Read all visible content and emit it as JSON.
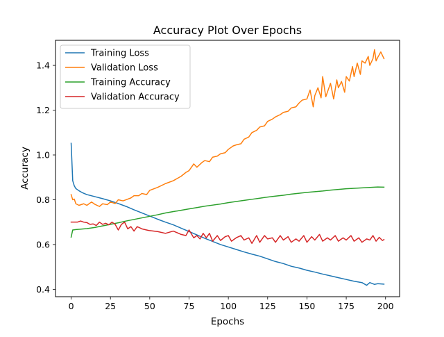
{
  "chart_data": {
    "type": "line",
    "title": "Accuracy Plot Over Epochs",
    "xlabel": "Epochs",
    "ylabel": "Accuracy",
    "xlim": [
      -9.95,
      208.95
    ],
    "ylim": [
      0.367,
      1.512
    ],
    "xticks": [
      0,
      25,
      50,
      75,
      100,
      125,
      150,
      175,
      200
    ],
    "yticks": [
      0.4,
      0.6,
      0.8,
      1.0,
      1.2,
      1.4
    ],
    "ytick_labels": [
      "0.4",
      "0.6",
      "0.8",
      "1.0",
      "1.2",
      "1.4"
    ],
    "grid": false,
    "legend_position": "top-left",
    "series": [
      {
        "name": "Training Loss",
        "color": "#1f77b4",
        "x": [
          0,
          1,
          2,
          3,
          4,
          5,
          7,
          10,
          15,
          20,
          25,
          30,
          35,
          40,
          45,
          50,
          55,
          60,
          65,
          70,
          75,
          80,
          85,
          90,
          95,
          100,
          105,
          110,
          115,
          120,
          125,
          130,
          135,
          140,
          145,
          150,
          155,
          160,
          165,
          170,
          175,
          180,
          185,
          188,
          190,
          193,
          195,
          199
        ],
        "y": [
          1.052,
          0.885,
          0.862,
          0.85,
          0.845,
          0.84,
          0.832,
          0.823,
          0.814,
          0.805,
          0.795,
          0.783,
          0.77,
          0.755,
          0.741,
          0.727,
          0.713,
          0.7,
          0.688,
          0.673,
          0.658,
          0.643,
          0.628,
          0.614,
          0.6,
          0.589,
          0.578,
          0.567,
          0.557,
          0.548,
          0.536,
          0.524,
          0.515,
          0.503,
          0.495,
          0.485,
          0.477,
          0.468,
          0.46,
          0.452,
          0.444,
          0.436,
          0.43,
          0.418,
          0.43,
          0.422,
          0.425,
          0.423
        ]
      },
      {
        "name": "Validation Loss",
        "color": "#ff7f0e",
        "x": [
          0,
          1,
          2,
          3,
          5,
          8,
          10,
          13,
          15,
          18,
          20,
          23,
          25,
          28,
          30,
          33,
          35,
          38,
          40,
          43,
          45,
          48,
          50,
          55,
          60,
          65,
          70,
          73,
          75,
          78,
          80,
          83,
          85,
          88,
          90,
          93,
          95,
          98,
          100,
          103,
          105,
          108,
          110,
          113,
          115,
          118,
          120,
          123,
          125,
          128,
          130,
          133,
          135,
          138,
          140,
          143,
          145,
          147,
          150,
          152,
          154,
          155,
          157,
          159,
          160,
          162,
          164,
          165,
          167,
          169,
          170,
          172,
          174,
          175,
          177,
          179,
          180,
          182,
          184,
          185,
          187,
          189,
          190,
          192,
          193,
          194,
          195,
          197,
          198,
          199
        ],
        "y": [
          0.823,
          0.8,
          0.803,
          0.782,
          0.775,
          0.782,
          0.775,
          0.79,
          0.78,
          0.77,
          0.782,
          0.778,
          0.79,
          0.783,
          0.8,
          0.795,
          0.8,
          0.808,
          0.818,
          0.818,
          0.828,
          0.823,
          0.842,
          0.855,
          0.872,
          0.885,
          0.905,
          0.922,
          0.93,
          0.96,
          0.945,
          0.965,
          0.975,
          0.97,
          0.99,
          0.995,
          1.005,
          1.01,
          1.025,
          1.04,
          1.045,
          1.05,
          1.07,
          1.08,
          1.1,
          1.11,
          1.125,
          1.13,
          1.15,
          1.16,
          1.17,
          1.18,
          1.19,
          1.195,
          1.21,
          1.215,
          1.232,
          1.245,
          1.25,
          1.29,
          1.215,
          1.265,
          1.3,
          1.255,
          1.35,
          1.26,
          1.3,
          1.32,
          1.25,
          1.335,
          1.3,
          1.328,
          1.28,
          1.35,
          1.33,
          1.395,
          1.35,
          1.41,
          1.36,
          1.42,
          1.41,
          1.44,
          1.4,
          1.43,
          1.47,
          1.42,
          1.435,
          1.46,
          1.445,
          1.43
        ]
      },
      {
        "name": "Training Accuracy",
        "color": "#2ca02c",
        "x": [
          0,
          1,
          3,
          5,
          10,
          15,
          20,
          25,
          30,
          35,
          40,
          45,
          50,
          55,
          60,
          65,
          70,
          75,
          80,
          85,
          90,
          95,
          100,
          105,
          110,
          115,
          120,
          125,
          130,
          135,
          140,
          145,
          150,
          155,
          160,
          165,
          170,
          175,
          180,
          185,
          190,
          195,
          199
        ],
        "y": [
          0.633,
          0.665,
          0.667,
          0.668,
          0.671,
          0.676,
          0.683,
          0.69,
          0.697,
          0.705,
          0.712,
          0.719,
          0.726,
          0.733,
          0.741,
          0.747,
          0.753,
          0.759,
          0.765,
          0.771,
          0.776,
          0.781,
          0.787,
          0.792,
          0.797,
          0.802,
          0.807,
          0.812,
          0.816,
          0.82,
          0.825,
          0.829,
          0.833,
          0.836,
          0.839,
          0.843,
          0.846,
          0.849,
          0.851,
          0.853,
          0.855,
          0.857,
          0.856
        ]
      },
      {
        "name": "Validation Accuracy",
        "color": "#d62728",
        "x": [
          0,
          2,
          4,
          6,
          8,
          10,
          12,
          14,
          16,
          18,
          20,
          22,
          24,
          26,
          28,
          30,
          32,
          34,
          36,
          38,
          40,
          42,
          45,
          48,
          50,
          55,
          60,
          65,
          70,
          73,
          75,
          78,
          80,
          82,
          84,
          86,
          88,
          90,
          93,
          95,
          98,
          100,
          102,
          105,
          108,
          110,
          113,
          115,
          118,
          120,
          123,
          125,
          128,
          130,
          133,
          135,
          138,
          140,
          143,
          145,
          148,
          150,
          153,
          155,
          158,
          160,
          163,
          165,
          168,
          170,
          173,
          175,
          178,
          180,
          183,
          185,
          188,
          190,
          192,
          194,
          196,
          198,
          199
        ],
        "y": [
          0.7,
          0.7,
          0.7,
          0.705,
          0.7,
          0.698,
          0.69,
          0.692,
          0.685,
          0.7,
          0.69,
          0.695,
          0.688,
          0.7,
          0.69,
          0.665,
          0.69,
          0.7,
          0.67,
          0.68,
          0.66,
          0.68,
          0.67,
          0.665,
          0.662,
          0.658,
          0.65,
          0.66,
          0.645,
          0.64,
          0.665,
          0.63,
          0.64,
          0.625,
          0.65,
          0.63,
          0.65,
          0.615,
          0.64,
          0.618,
          0.635,
          0.64,
          0.615,
          0.63,
          0.64,
          0.62,
          0.63,
          0.605,
          0.64,
          0.61,
          0.64,
          0.625,
          0.63,
          0.61,
          0.64,
          0.62,
          0.635,
          0.61,
          0.625,
          0.615,
          0.64,
          0.61,
          0.635,
          0.62,
          0.645,
          0.615,
          0.63,
          0.62,
          0.64,
          0.615,
          0.63,
          0.62,
          0.64,
          0.615,
          0.63,
          0.61,
          0.625,
          0.62,
          0.64,
          0.615,
          0.632,
          0.618,
          0.622
        ]
      }
    ]
  }
}
